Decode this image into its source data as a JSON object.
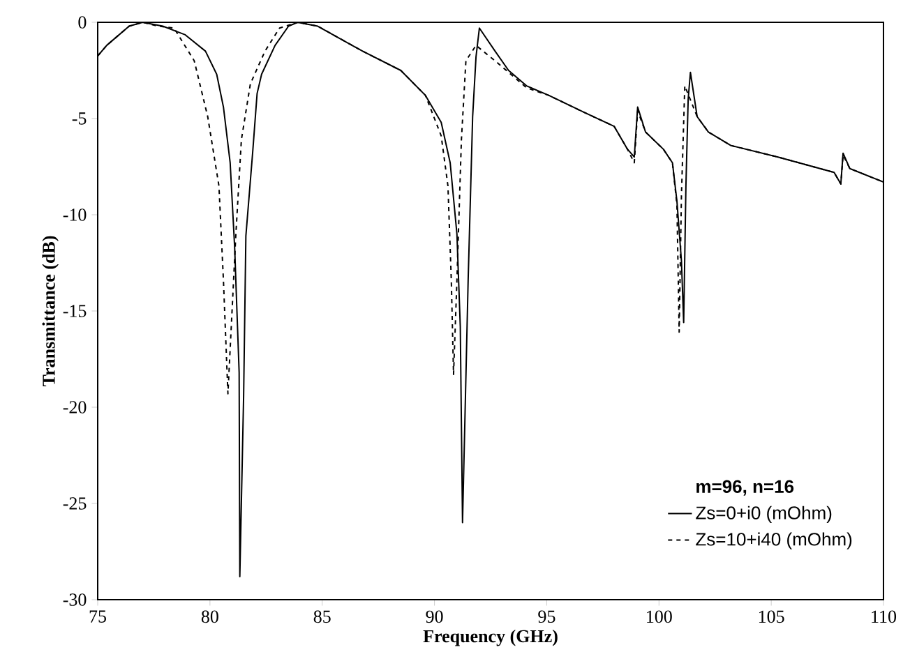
{
  "chart_data": {
    "type": "line",
    "xlabel": "Frequency (GHz)",
    "ylabel": "Transmittance (dB)",
    "xlim": [
      75,
      110
    ],
    "ylim": [
      -30,
      0
    ],
    "xticks": [
      75,
      80,
      85,
      90,
      95,
      100,
      105,
      110
    ],
    "yticks": [
      -30,
      -25,
      -20,
      -15,
      -10,
      -5,
      0
    ],
    "legend": "bottom right",
    "legend_title": "m=96, n=16",
    "series": [
      {
        "name": "Zs=0+i0 (mOhm)",
        "color": "#000000",
        "line_style": "solid",
        "x": [
          75,
          75.4,
          76.4,
          77.0,
          77.9,
          78.9,
          79.8,
          80.3,
          80.6,
          80.9,
          81.1,
          81.3,
          81.33,
          81.5,
          81.6,
          81.9,
          82.1,
          82.3,
          82.9,
          83.5,
          83.9,
          84.8,
          86.8,
          88.5,
          89.6,
          90.3,
          90.7,
          91.0,
          91.15,
          91.25,
          91.5,
          91.7,
          91.85,
          92.0,
          92.7,
          93.3,
          94.1,
          95.1,
          96.7,
          98.0,
          98.6,
          98.9,
          99.05,
          99.4,
          100.2,
          100.6,
          100.8,
          101.0,
          101.1,
          101.2,
          101.3,
          101.4,
          101.7,
          102.2,
          103.2,
          105.3,
          107.8,
          108.1,
          108.2,
          108.5,
          110
        ],
        "values": [
          -1.75,
          -1.2,
          -0.2,
          0,
          -0.2,
          -0.65,
          -1.5,
          -2.7,
          -4.4,
          -7.3,
          -11.7,
          -18.2,
          -28.8,
          -19.4,
          -11.1,
          -6.8,
          -3.7,
          -2.7,
          -1.2,
          -0.2,
          0,
          -0.2,
          -1.5,
          -2.5,
          -3.8,
          -5.2,
          -7.3,
          -11.0,
          -15.8,
          -26.0,
          -13.4,
          -4.9,
          -1.8,
          -0.3,
          -1.5,
          -2.5,
          -3.3,
          -3.8,
          -4.7,
          -5.4,
          -6.6,
          -7.0,
          -4.4,
          -5.7,
          -6.6,
          -7.3,
          -9.3,
          -12.4,
          -15.6,
          -8.5,
          -4.0,
          -2.6,
          -4.9,
          -5.7,
          -6.4,
          -7.0,
          -7.8,
          -8.4,
          -6.8,
          -7.6,
          -8.3
        ]
      },
      {
        "name": "Zs=10+i40 (mOhm)",
        "color": "#000000",
        "line_style": "dashed",
        "x": [
          75,
          75.4,
          76.4,
          77.0,
          77.7,
          78.4,
          79.3,
          79.9,
          80.4,
          80.6,
          80.8,
          80.95,
          81.15,
          81.4,
          81.8,
          82.45,
          83.1,
          83.9,
          84.8,
          86.8,
          88.5,
          89.6,
          90.3,
          90.6,
          90.75,
          90.85,
          91.0,
          91.2,
          91.4,
          91.85,
          92.7,
          94.1,
          95.1,
          96.7,
          98.0,
          98.6,
          98.9,
          99.05,
          99.4,
          100.2,
          100.6,
          100.8,
          100.9,
          101.0,
          101.15,
          101.7,
          102.2,
          103.2,
          105.3,
          107.8,
          108.1,
          108.2,
          108.5,
          110
        ],
        "values": [
          -1.75,
          -1.2,
          -0.2,
          0,
          -0.2,
          -0.3,
          -2.0,
          -4.9,
          -8.5,
          -13.4,
          -19.3,
          -15.8,
          -11.1,
          -6.1,
          -3.2,
          -1.5,
          -0.3,
          0,
          -0.2,
          -1.5,
          -2.5,
          -3.8,
          -5.9,
          -8.5,
          -13.4,
          -18.3,
          -13.4,
          -6.1,
          -2.0,
          -1.2,
          -2.0,
          -3.4,
          -3.8,
          -4.7,
          -5.4,
          -6.6,
          -7.3,
          -4.6,
          -5.7,
          -6.6,
          -7.3,
          -9.5,
          -16.1,
          -9.0,
          -3.3,
          -4.9,
          -5.7,
          -6.4,
          -7.0,
          -7.8,
          -8.4,
          -6.9,
          -7.6,
          -8.3
        ]
      }
    ]
  }
}
